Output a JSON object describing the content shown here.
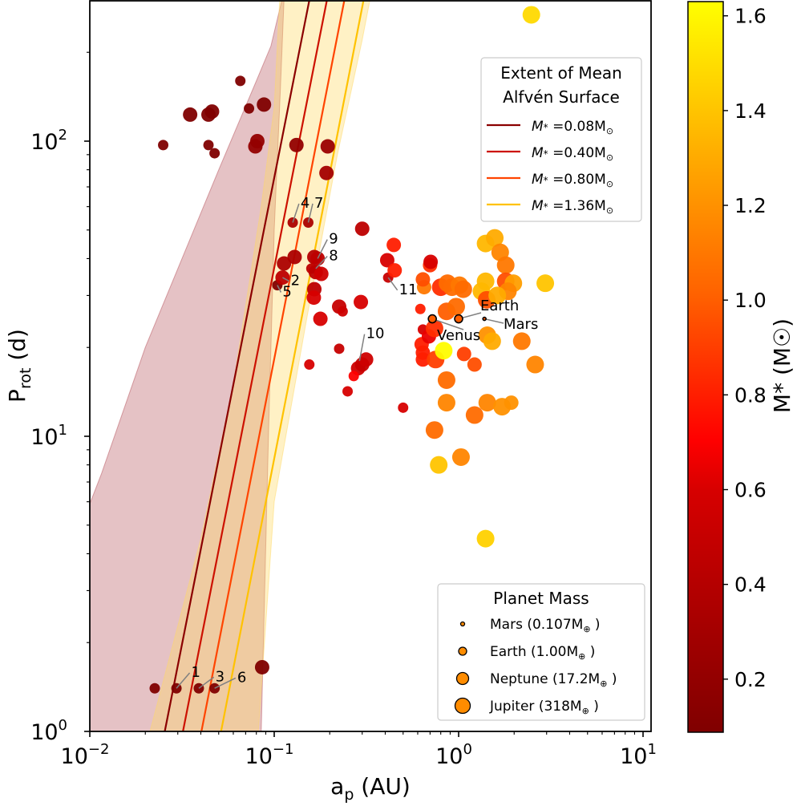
{
  "chart_data": {
    "type": "scatter",
    "title": "",
    "xlabel": "a_p (AU)",
    "ylabel": "P_rot (d)",
    "xscale": "log",
    "yscale": "log",
    "xlim": [
      0.01,
      11
    ],
    "ylim": [
      1,
      300
    ],
    "x_ticks": [
      {
        "value": 0.01,
        "label": "10",
        "exp": "−2"
      },
      {
        "value": 0.1,
        "label": "10",
        "exp": "−1"
      },
      {
        "value": 1,
        "label": "10",
        "exp": "0"
      },
      {
        "value": 10,
        "label": "10",
        "exp": "1"
      }
    ],
    "y_ticks": [
      {
        "value": 1,
        "label": "10",
        "exp": "0"
      },
      {
        "value": 10,
        "label": "10",
        "exp": "1"
      },
      {
        "value": 100,
        "label": "10",
        "exp": "2"
      }
    ],
    "grid": false,
    "colorbar": {
      "label": "M* (M☉)",
      "range": [
        0.088,
        1.63
      ],
      "ticks": [
        0.2,
        0.4,
        0.6,
        0.8,
        1.0,
        1.2,
        1.4,
        1.6
      ],
      "tick_labels": [
        "0.2",
        "0.4",
        "0.6",
        "0.8",
        "1.0",
        "1.2",
        "1.4",
        "1.6"
      ],
      "colormap": "autumn-dark (dark red → red → orange → yellow)"
    },
    "alfven_legend": {
      "title_line1": "Extent of Mean",
      "title_line2": "Alfvén Surface",
      "placement": "top-right",
      "entries": [
        {
          "label_prefix": "M",
          "label_sub": "*",
          "label_value": " =0.08M",
          "label_unit": "⊙",
          "color": "#8b0000"
        },
        {
          "label_prefix": "M",
          "label_sub": "*",
          "label_value": " =0.40M",
          "label_unit": "⊙",
          "color": "#cc1100"
        },
        {
          "label_prefix": "M",
          "label_sub": "*",
          "label_value": " =0.80M",
          "label_unit": "⊙",
          "color": "#ff4400"
        },
        {
          "label_prefix": "M",
          "label_sub": "*",
          "label_value": " =1.36M",
          "label_unit": "⊙",
          "color": "#ffc200"
        }
      ]
    },
    "alfven_lines": [
      {
        "mstar": 0.08,
        "color": "#8b0000",
        "points": [
          [
            0.0255,
            1
          ],
          [
            0.155,
            300
          ]
        ]
      },
      {
        "mstar": 0.4,
        "color": "#cc1100",
        "points": [
          [
            0.032,
            1
          ],
          [
            0.193,
            300
          ]
        ]
      },
      {
        "mstar": 0.8,
        "color": "#ff4400",
        "points": [
          [
            0.0403,
            1
          ],
          [
            0.24,
            300
          ]
        ]
      },
      {
        "mstar": 1.36,
        "color": "#ffc200",
        "points": [
          [
            0.0515,
            1
          ],
          [
            0.305,
            300
          ]
        ]
      }
    ],
    "alfven_bands": [
      {
        "mstar": 0.08,
        "color": "#b5505a",
        "opacity": 0.35,
        "lower": [
          [
            0.01,
            5.9
          ],
          [
            0.0116,
            7.5
          ],
          [
            0.02,
            20
          ],
          [
            0.05,
            80
          ],
          [
            0.08,
            160
          ],
          [
            0.096,
            210
          ],
          [
            0.11,
            300
          ]
        ],
        "upper": [
          [
            0.085,
            1
          ],
          [
            0.093,
            10
          ],
          [
            0.1,
            50
          ],
          [
            0.108,
            150
          ],
          [
            0.113,
            300
          ]
        ]
      },
      {
        "mstar": 1.36,
        "color": "#ffd966",
        "opacity": 0.38,
        "lower": [
          [
            0.0212,
            1
          ],
          [
            0.04,
            4.5
          ],
          [
            0.06,
            15
          ],
          [
            0.085,
            60
          ],
          [
            0.1,
            130
          ],
          [
            0.107,
            300
          ]
        ],
        "upper": [
          [
            0.082,
            1
          ],
          [
            0.1,
            6
          ],
          [
            0.15,
            25
          ],
          [
            0.22,
            90
          ],
          [
            0.3,
            220
          ],
          [
            0.33,
            300
          ]
        ]
      }
    ],
    "size_legend": {
      "title": "Planet Mass",
      "placement": "bottom-right",
      "entries": [
        {
          "name": "Mars",
          "mass_label": " (0.107M",
          "unit": "⊕",
          "close": " )",
          "size": "mars"
        },
        {
          "name": "Earth",
          "mass_label": " (1.00M",
          "unit": "⊕",
          "close": " )",
          "size": "earth"
        },
        {
          "name": "Neptune",
          "mass_label": " (17.2M",
          "unit": "⊕",
          "close": " )",
          "size": "neptune"
        },
        {
          "name": "Jupiter",
          "mass_label": " (318M",
          "unit": "⊕",
          "close": " )",
          "size": "jupiter"
        }
      ]
    },
    "solar_system": [
      {
        "name": "Venus",
        "a": 0.72,
        "p": 25.0,
        "mstar": 1.0,
        "size": "earth",
        "label_offset": [
          0.9,
          -0.07
        ]
      },
      {
        "name": "Earth",
        "a": 1.0,
        "p": 25.0,
        "mstar": 1.0,
        "size": "earth",
        "label_offset": [
          0.11,
          0.06
        ]
      },
      {
        "name": "Mars",
        "a": 1.38,
        "p": 25.0,
        "mstar": 1.0,
        "size": "mars",
        "label_offset": [
          0.05,
          -0.015
        ]
      }
    ],
    "numbered_labels": [
      {
        "text": "1",
        "a": 0.0295,
        "p": 1.4,
        "tx": 0.0355,
        "ty": 1.53
      },
      {
        "text": "2",
        "a": 0.111,
        "p": 34.5,
        "tx": 0.123,
        "ty": 32.5
      },
      {
        "text": "3",
        "a": 0.039,
        "p": 1.4,
        "tx": 0.048,
        "ty": 1.48
      },
      {
        "text": "4",
        "a": 0.126,
        "p": 53.0,
        "tx": 0.139,
        "ty": 59.5
      },
      {
        "text": "5",
        "a": 0.104,
        "p": 32.5,
        "tx": 0.111,
        "ty": 29.8
      },
      {
        "text": "6",
        "a": 0.0475,
        "p": 1.4,
        "tx": 0.063,
        "ty": 1.47
      },
      {
        "text": "7",
        "a": 0.153,
        "p": 53.0,
        "tx": 0.165,
        "ty": 59.5
      },
      {
        "text": "8",
        "a": 0.168,
        "p": 37.0,
        "tx": 0.198,
        "ty": 39.5
      },
      {
        "text": "9",
        "a": 0.172,
        "p": 40.0,
        "tx": 0.198,
        "ty": 45.0
      },
      {
        "text": "10",
        "a": 0.29,
        "p": 18.0,
        "tx": 0.315,
        "ty": 21.5
      },
      {
        "text": "11",
        "a": 0.415,
        "p": 34.5,
        "tx": 0.475,
        "ty": 30.3
      }
    ],
    "points": [
      {
        "a": 0.0225,
        "p": 1.4,
        "mstar": 0.09,
        "size": "earth"
      },
      {
        "a": 0.0295,
        "p": 1.4,
        "mstar": 0.09,
        "size": "earth"
      },
      {
        "a": 0.039,
        "p": 1.4,
        "mstar": 0.09,
        "size": "earth"
      },
      {
        "a": 0.0475,
        "p": 1.4,
        "mstar": 0.09,
        "size": "earth"
      },
      {
        "a": 0.086,
        "p": 1.65,
        "mstar": 0.09,
        "size": "neptune"
      },
      {
        "a": 0.025,
        "p": 97,
        "mstar": 0.09,
        "size": "earth"
      },
      {
        "a": 0.035,
        "p": 123,
        "mstar": 0.09,
        "size": "neptune"
      },
      {
        "a": 0.044,
        "p": 123,
        "mstar": 0.09,
        "size": "neptune"
      },
      {
        "a": 0.046,
        "p": 126,
        "mstar": 0.09,
        "size": "neptune"
      },
      {
        "a": 0.044,
        "p": 97,
        "mstar": 0.09,
        "size": "earth"
      },
      {
        "a": 0.0475,
        "p": 91,
        "mstar": 0.09,
        "size": "earth"
      },
      {
        "a": 0.0655,
        "p": 160,
        "mstar": 0.09,
        "size": "earth"
      },
      {
        "a": 0.073,
        "p": 129,
        "mstar": 0.09,
        "size": "earth"
      },
      {
        "a": 0.088,
        "p": 133,
        "mstar": 0.09,
        "size": "neptune"
      },
      {
        "a": 0.079,
        "p": 96,
        "mstar": 0.2,
        "size": "neptune"
      },
      {
        "a": 0.081,
        "p": 100,
        "mstar": 0.2,
        "size": "neptune"
      },
      {
        "a": 0.132,
        "p": 97,
        "mstar": 0.2,
        "size": "neptune"
      },
      {
        "a": 0.195,
        "p": 96,
        "mstar": 0.25,
        "size": "neptune"
      },
      {
        "a": 0.192,
        "p": 78,
        "mstar": 0.3,
        "size": "neptune"
      },
      {
        "a": 0.126,
        "p": 53,
        "mstar": 0.35,
        "size": "earth"
      },
      {
        "a": 0.153,
        "p": 53,
        "mstar": 0.35,
        "size": "earth"
      },
      {
        "a": 0.104,
        "p": 32.5,
        "mstar": 0.1,
        "size": "earth"
      },
      {
        "a": 0.111,
        "p": 34.5,
        "mstar": 0.45,
        "size": "neptune"
      },
      {
        "a": 0.113,
        "p": 38.5,
        "mstar": 0.35,
        "size": "neptune"
      },
      {
        "a": 0.129,
        "p": 40.5,
        "mstar": 0.35,
        "size": "neptune"
      },
      {
        "a": 0.165,
        "p": 40.5,
        "mstar": 0.4,
        "size": "neptune"
      },
      {
        "a": 0.172,
        "p": 40.0,
        "mstar": 0.45,
        "size": "neptune"
      },
      {
        "a": 0.159,
        "p": 37.0,
        "mstar": 0.45,
        "size": "earth"
      },
      {
        "a": 0.168,
        "p": 36.0,
        "mstar": 0.45,
        "size": "neptune"
      },
      {
        "a": 0.18,
        "p": 35.5,
        "mstar": 0.55,
        "size": "neptune"
      },
      {
        "a": 0.165,
        "p": 31.5,
        "mstar": 0.45,
        "size": "neptune"
      },
      {
        "a": 0.164,
        "p": 29.5,
        "mstar": 0.6,
        "size": "neptune"
      },
      {
        "a": 0.178,
        "p": 25.0,
        "mstar": 0.6,
        "size": "neptune"
      },
      {
        "a": 0.225,
        "p": 27.5,
        "mstar": 0.5,
        "size": "neptune"
      },
      {
        "a": 0.235,
        "p": 26.5,
        "mstar": 0.55,
        "size": "earth"
      },
      {
        "a": 0.295,
        "p": 28.5,
        "mstar": 0.6,
        "size": "neptune"
      },
      {
        "a": 0.3,
        "p": 50.5,
        "mstar": 0.45,
        "size": "neptune"
      },
      {
        "a": 0.155,
        "p": 17.5,
        "mstar": 0.6,
        "size": "earth"
      },
      {
        "a": 0.225,
        "p": 19.8,
        "mstar": 0.5,
        "size": "earth"
      },
      {
        "a": 0.285,
        "p": 17.0,
        "mstar": 0.55,
        "size": "neptune"
      },
      {
        "a": 0.3,
        "p": 17.5,
        "mstar": 0.5,
        "size": "neptune"
      },
      {
        "a": 0.315,
        "p": 18.2,
        "mstar": 0.55,
        "size": "neptune"
      },
      {
        "a": 0.27,
        "p": 16.0,
        "mstar": 0.7,
        "size": "earth"
      },
      {
        "a": 0.25,
        "p": 14.2,
        "mstar": 0.6,
        "size": "earth"
      },
      {
        "a": 0.415,
        "p": 34.5,
        "mstar": 0.5,
        "size": "earth"
      },
      {
        "a": 0.41,
        "p": 39.5,
        "mstar": 0.6,
        "size": "neptune"
      },
      {
        "a": 0.445,
        "p": 44.5,
        "mstar": 0.8,
        "size": "neptune"
      },
      {
        "a": 0.45,
        "p": 36.5,
        "mstar": 0.8,
        "size": "neptune"
      },
      {
        "a": 0.5,
        "p": 12.5,
        "mstar": 0.6,
        "size": "earth"
      },
      {
        "a": 0.62,
        "p": 27.0,
        "mstar": 0.8,
        "size": "earth"
      },
      {
        "a": 0.65,
        "p": 32.0,
        "mstar": 1.1,
        "size": "neptune"
      },
      {
        "a": 0.64,
        "p": 34.0,
        "mstar": 0.95,
        "size": "neptune"
      },
      {
        "a": 0.7,
        "p": 38.0,
        "mstar": 0.85,
        "size": "neptune"
      },
      {
        "a": 0.705,
        "p": 39.0,
        "mstar": 0.6,
        "size": "neptune"
      },
      {
        "a": 0.64,
        "p": 23.0,
        "mstar": 0.6,
        "size": "earth"
      },
      {
        "a": 0.63,
        "p": 20.5,
        "mstar": 0.8,
        "size": "neptune"
      },
      {
        "a": 0.64,
        "p": 19.2,
        "mstar": 0.8,
        "size": "neptune"
      },
      {
        "a": 0.64,
        "p": 18.2,
        "mstar": 0.8,
        "size": "neptune"
      },
      {
        "a": 0.69,
        "p": 21.8,
        "mstar": 0.65,
        "size": "neptune"
      },
      {
        "a": 0.74,
        "p": 23.2,
        "mstar": 0.85,
        "size": "jupiter"
      },
      {
        "a": 0.75,
        "p": 18.2,
        "mstar": 0.9,
        "size": "jupiter"
      },
      {
        "a": 0.83,
        "p": 19.5,
        "mstar": 1.62,
        "size": "jupiter"
      },
      {
        "a": 0.8,
        "p": 32.0,
        "mstar": 0.85,
        "size": "jupiter"
      },
      {
        "a": 0.87,
        "p": 33.0,
        "mstar": 1.05,
        "size": "jupiter"
      },
      {
        "a": 0.92,
        "p": 32.0,
        "mstar": 1.05,
        "size": "jupiter"
      },
      {
        "a": 0.86,
        "p": 26.5,
        "mstar": 1.0,
        "size": "jupiter"
      },
      {
        "a": 1.01,
        "p": 32.5,
        "mstar": 1.1,
        "size": "jupiter"
      },
      {
        "a": 1.06,
        "p": 31.5,
        "mstar": 1.05,
        "size": "jupiter"
      },
      {
        "a": 0.97,
        "p": 27.5,
        "mstar": 1.05,
        "size": "jupiter"
      },
      {
        "a": 1.07,
        "p": 19.0,
        "mstar": 0.9,
        "size": "neptune"
      },
      {
        "a": 1.22,
        "p": 17.5,
        "mstar": 0.95,
        "size": "neptune"
      },
      {
        "a": 0.86,
        "p": 15.5,
        "mstar": 1.05,
        "size": "jupiter"
      },
      {
        "a": 0.86,
        "p": 13.0,
        "mstar": 1.15,
        "size": "jupiter"
      },
      {
        "a": 0.74,
        "p": 10.5,
        "mstar": 1.05,
        "size": "jupiter"
      },
      {
        "a": 1.03,
        "p": 8.5,
        "mstar": 1.15,
        "size": "jupiter"
      },
      {
        "a": 0.78,
        "p": 8.0,
        "mstar": 1.4,
        "size": "jupiter"
      },
      {
        "a": 1.22,
        "p": 11.8,
        "mstar": 1.05,
        "size": "jupiter"
      },
      {
        "a": 1.43,
        "p": 13.0,
        "mstar": 1.15,
        "size": "jupiter"
      },
      {
        "a": 1.72,
        "p": 12.6,
        "mstar": 1.2,
        "size": "jupiter"
      },
      {
        "a": 1.93,
        "p": 13.0,
        "mstar": 1.2,
        "size": "neptune"
      },
      {
        "a": 1.43,
        "p": 22.0,
        "mstar": 1.2,
        "size": "jupiter"
      },
      {
        "a": 1.52,
        "p": 21.0,
        "mstar": 1.3,
        "size": "jupiter"
      },
      {
        "a": 2.2,
        "p": 21.0,
        "mstar": 1.1,
        "size": "jupiter"
      },
      {
        "a": 2.6,
        "p": 17.5,
        "mstar": 1.15,
        "size": "jupiter"
      },
      {
        "a": 1.33,
        "p": 31.0,
        "mstar": 1.35,
        "size": "jupiter"
      },
      {
        "a": 1.42,
        "p": 29.0,
        "mstar": 0.95,
        "size": "jupiter"
      },
      {
        "a": 1.4,
        "p": 45.0,
        "mstar": 1.35,
        "size": "jupiter"
      },
      {
        "a": 1.57,
        "p": 47.0,
        "mstar": 1.3,
        "size": "jupiter"
      },
      {
        "a": 1.68,
        "p": 42.0,
        "mstar": 1.15,
        "size": "jupiter"
      },
      {
        "a": 1.8,
        "p": 38.0,
        "mstar": 1.1,
        "size": "jupiter"
      },
      {
        "a": 1.8,
        "p": 33.5,
        "mstar": 0.95,
        "size": "jupiter"
      },
      {
        "a": 1.98,
        "p": 33.0,
        "mstar": 1.25,
        "size": "jupiter"
      },
      {
        "a": 1.85,
        "p": 31.0,
        "mstar": 1.15,
        "size": "jupiter"
      },
      {
        "a": 1.62,
        "p": 30.0,
        "mstar": 1.3,
        "size": "jupiter"
      },
      {
        "a": 1.4,
        "p": 33.5,
        "mstar": 1.35,
        "size": "jupiter"
      },
      {
        "a": 2.95,
        "p": 33.0,
        "mstar": 1.4,
        "size": "jupiter"
      },
      {
        "a": 1.4,
        "p": 4.5,
        "mstar": 1.45,
        "size": "jupiter"
      },
      {
        "a": 2.48,
        "p": 268,
        "mstar": 1.48,
        "size": "jupiter"
      }
    ]
  }
}
